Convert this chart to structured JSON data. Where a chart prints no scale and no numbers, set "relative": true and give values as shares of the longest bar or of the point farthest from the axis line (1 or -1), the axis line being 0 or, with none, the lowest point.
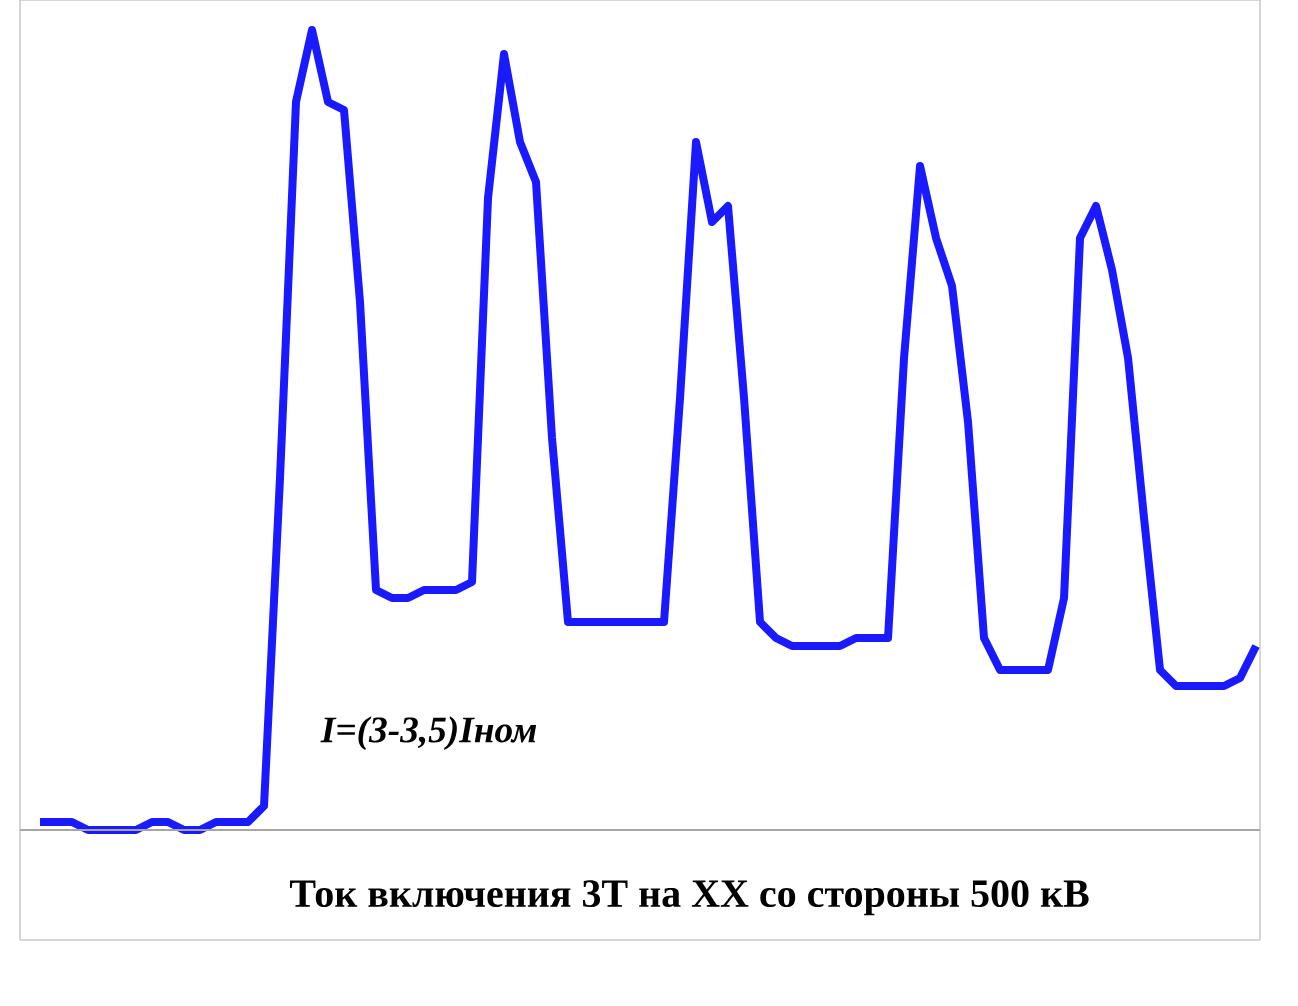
{
  "chart_data": {
    "type": "line",
    "relative": true,
    "title": "Ток включения 3Т на ХХ со стороны 500 кВ",
    "annotations": [
      "I=(3-3,5)Iном"
    ],
    "categories": [
      null,
      null,
      null,
      null,
      null,
      null,
      null,
      null,
      null,
      null,
      null,
      null,
      null,
      null,
      null,
      null,
      null,
      null,
      null,
      null,
      null,
      null,
      null,
      null,
      null,
      null,
      null,
      null,
      null,
      null,
      null,
      null,
      null,
      null,
      null,
      null,
      null,
      null,
      null,
      null,
      null,
      null,
      null,
      null,
      null,
      null,
      null,
      null,
      null,
      null,
      null,
      null,
      null,
      null,
      null,
      null,
      null,
      null,
      null,
      null,
      null,
      null,
      null,
      null,
      null,
      null,
      null,
      null,
      null,
      null,
      null,
      null,
      null,
      null,
      null,
      null,
      null
    ],
    "series": [
      {
        "color": "#1a1aff",
        "values": [
          0.01,
          0.01,
          0.01,
          0.0,
          0.0,
          0.0,
          0.0,
          0.01,
          0.01,
          0.0,
          0.0,
          0.01,
          0.01,
          0.01,
          0.03,
          0.44,
          0.91,
          1.0,
          0.91,
          0.9,
          0.66,
          0.3,
          0.29,
          0.29,
          0.3,
          0.3,
          0.3,
          0.31,
          0.79,
          0.97,
          0.86,
          0.81,
          0.49,
          0.26,
          0.26,
          0.26,
          0.26,
          0.26,
          0.26,
          0.26,
          0.54,
          0.86,
          0.76,
          0.78,
          0.54,
          0.26,
          0.24,
          0.23,
          0.23,
          0.23,
          0.23,
          0.24,
          0.24,
          0.24,
          0.59,
          0.83,
          0.74,
          0.68,
          0.51,
          0.24,
          0.2,
          0.2,
          0.2,
          0.2,
          0.29,
          0.74,
          0.78,
          0.7,
          0.59,
          0.39,
          0.2,
          0.18,
          0.18,
          0.18,
          0.18,
          0.19,
          0.23
        ]
      }
    ],
    "marker": "none",
    "line_style": "solid"
  }
}
